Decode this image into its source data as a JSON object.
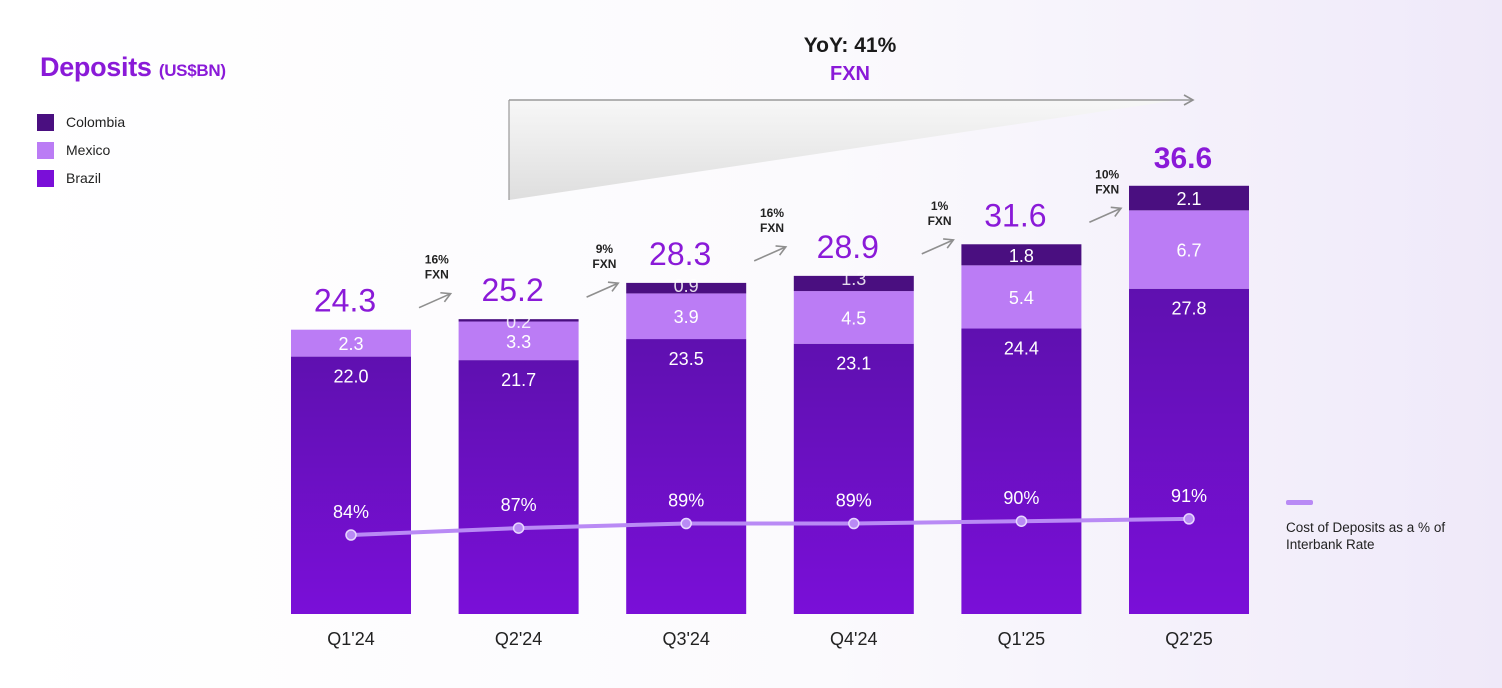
{
  "title": "Deposits",
  "title_unit": "(US$BN)",
  "colors": {
    "colombia": "#4a0f80",
    "mexico": "#bb7cf5",
    "brazil": "#7a0fd8",
    "brazil_top": "#5f10b0",
    "line": "#b98af5",
    "total_label": "#8a1ad8",
    "axis_text": "#222222",
    "arrow": "#8f8f8f"
  },
  "legend": [
    {
      "label": "Colombia",
      "color": "#4a0f80"
    },
    {
      "label": "Mexico",
      "color": "#bb7cf5"
    },
    {
      "label": "Brazil",
      "color": "#7a0fd8"
    }
  ],
  "line_legend_label": "Cost of Deposits as a % of Interbank Rate",
  "yoy": {
    "label": "YoY: 41%",
    "sub": "FXN"
  },
  "chart_data": {
    "type": "bar",
    "stacked": true,
    "categories": [
      "Q1'24",
      "Q2'24",
      "Q3'24",
      "Q4'24",
      "Q1'25",
      "Q2'25"
    ],
    "series": [
      {
        "name": "Brazil",
        "values": [
          22.0,
          21.7,
          23.5,
          23.1,
          24.4,
          27.8
        ],
        "labels": [
          "22.0",
          "21.7",
          "23.5",
          "23.1",
          "24.4",
          "27.8"
        ]
      },
      {
        "name": "Mexico",
        "values": [
          2.3,
          3.3,
          3.9,
          4.5,
          5.4,
          6.7
        ],
        "labels": [
          "2.3",
          "3.3",
          "3.9",
          "4.5",
          "5.4",
          "6.7"
        ]
      },
      {
        "name": "Colombia",
        "values": [
          0,
          0.2,
          0.9,
          1.3,
          1.8,
          2.1
        ],
        "labels": [
          "",
          "0.2",
          "0.9",
          "1.3",
          "1.8",
          "2.1"
        ]
      }
    ],
    "totals": [
      "24.3",
      "25.2",
      "28.3",
      "28.9",
      "31.6",
      "36.6"
    ],
    "growth": [
      {
        "pct": "16%",
        "sub": "FXN"
      },
      {
        "pct": "9%",
        "sub": "FXN"
      },
      {
        "pct": "16%",
        "sub": "FXN"
      },
      {
        "pct": "1%",
        "sub": "FXN"
      },
      {
        "pct": "10%",
        "sub": "FXN"
      }
    ],
    "line": {
      "name": "Cost of Deposits as a % of Interbank Rate",
      "values": [
        84,
        87,
        89,
        89,
        90,
        91
      ],
      "labels": [
        "84%",
        "87%",
        "89%",
        "89%",
        "90%",
        "91%"
      ]
    },
    "ylim": [
      0,
      40
    ]
  }
}
